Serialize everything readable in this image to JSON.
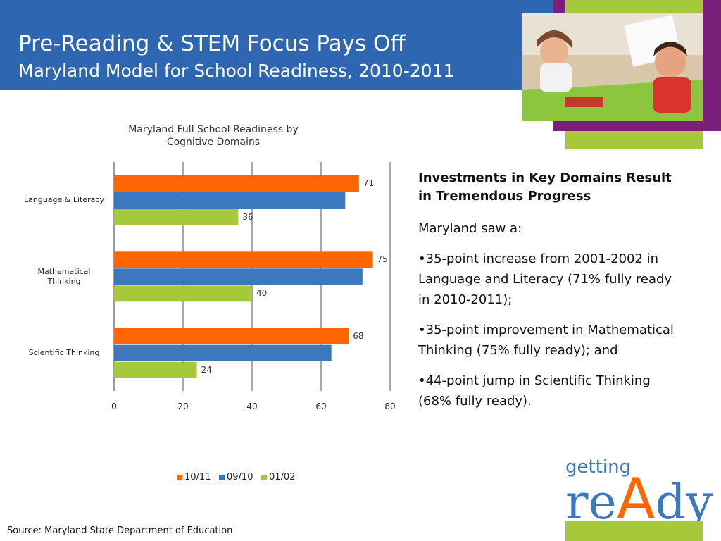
{
  "header": {
    "title": "Pre-Reading & STEM Focus Pays Off",
    "subtitle": "Maryland Model for School Readiness, 2010-2011"
  },
  "chart_data": {
    "type": "hbar",
    "title": "Maryland Full School Readiness by Cognitive Domains",
    "categories": [
      "Language & Literacy",
      "Mathematical Thinking",
      "Scientific Thinking"
    ],
    "series": [
      {
        "name": "10/11",
        "color": "#ff6600",
        "values": [
          71,
          75,
          68
        ],
        "show_labels": true
      },
      {
        "name": "09/10",
        "color": "#3b78be",
        "values": [
          67,
          72,
          63
        ],
        "show_labels": false
      },
      {
        "name": "01/02",
        "color": "#a5c93a",
        "values": [
          36,
          40,
          24
        ],
        "show_labels": true
      }
    ],
    "xlim": [
      0,
      80
    ],
    "xticks": [
      0,
      20,
      40,
      60,
      80
    ],
    "grid": true,
    "legend": "bottom"
  },
  "text": {
    "heading": "Investments in Key Domains Result in Tremendous Progress",
    "intro": "Maryland saw a:",
    "bullets": [
      "•35-point increase from 2001-2002 in Language and Literacy (71% fully ready in 2010-2011);",
      "•35-point improvement in Mathematical Thinking (75% fully ready); and",
      "•44-point jump in Scientific Thinking (68% fully ready)."
    ]
  },
  "logo": {
    "top": "getting",
    "parts": [
      "re",
      "A",
      "dy"
    ]
  },
  "source": "Source: Maryland State Department of Education"
}
